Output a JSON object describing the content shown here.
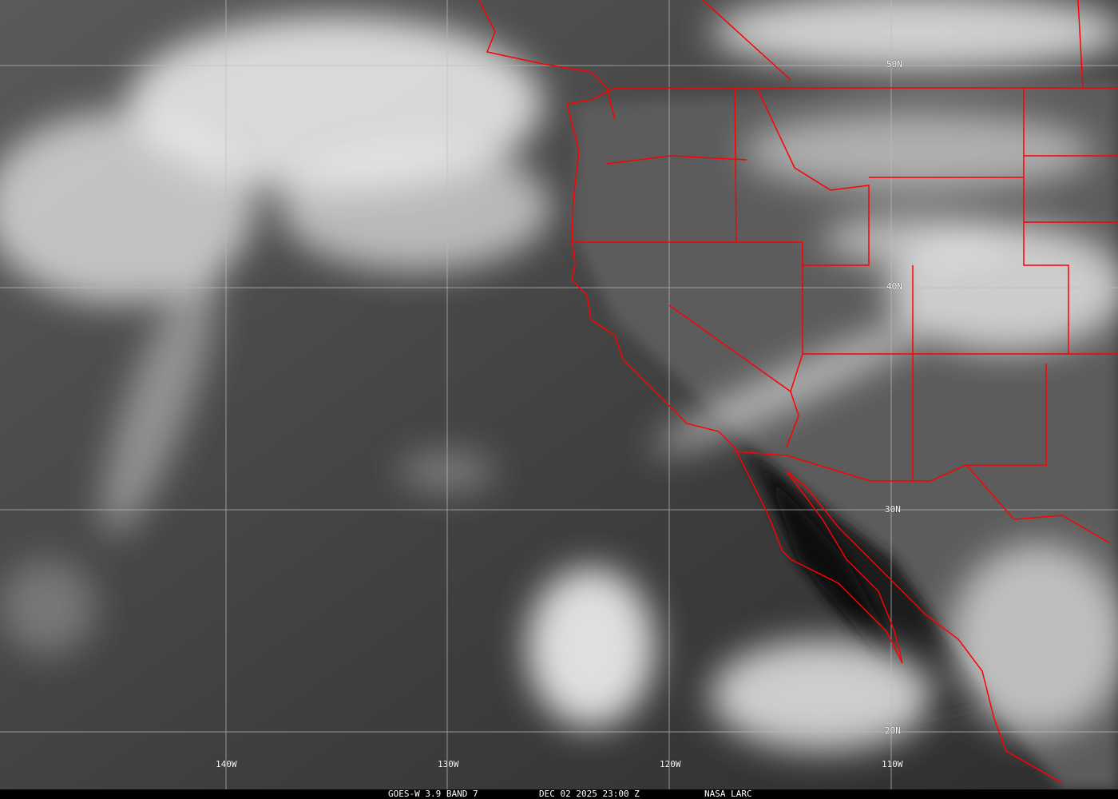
{
  "image": {
    "type": "satellite infrared imagery",
    "colors": {
      "borders": "#ff0000",
      "grid": "#bdbdbd",
      "label": "#ffffff"
    }
  },
  "grid": {
    "lat_labels": [
      "50N",
      "40N",
      "30N",
      "20N"
    ],
    "lon_labels": [
      "140W",
      "130W",
      "120W",
      "110W"
    ]
  },
  "caption": {
    "satellite": "GOES-W 3.9 BAND 7",
    "datetime": "DEC 02 2025 23:00 Z",
    "source": "NASA LARC"
  }
}
